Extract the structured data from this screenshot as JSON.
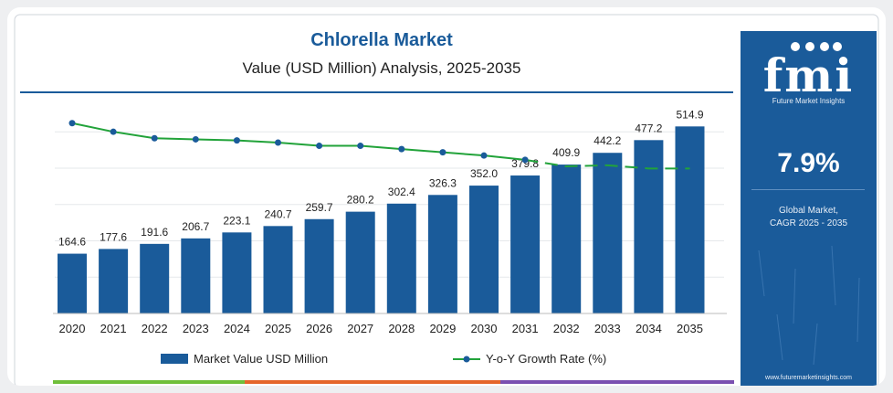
{
  "panel": {
    "logo_text": "fmi",
    "logo_tagline": "Future Market Insights",
    "cagr_value": "7.9%",
    "cagr_label": "Global Market,\nCAGR 2025 - 2035",
    "website": "www.futuremarketinsights.com"
  },
  "colors": {
    "bar": "#1a5b9a",
    "line": "#22a33a",
    "line_marker": "#1a5b9a",
    "title": "#1a5b9a",
    "rule": "#1a5b9a",
    "bottom_strip": [
      "#6fbf3a",
      "#e5652a",
      "#7a4fb0"
    ]
  },
  "chart_data": {
    "type": "bar",
    "title": "Chlorella Market",
    "subtitle": "Value (USD Million) Analysis, 2025-2035",
    "categories": [
      "2020",
      "2021",
      "2022",
      "2023",
      "2024",
      "2025",
      "2026",
      "2027",
      "2028",
      "2029",
      "2030",
      "2031",
      "2032",
      "2033",
      "2034",
      "2035"
    ],
    "series": [
      {
        "name": "Market Value USD Million",
        "type": "bar",
        "values": [
          164.6,
          177.6,
          191.6,
          206.7,
          223.1,
          240.7,
          259.7,
          280.2,
          302.4,
          326.3,
          352.0,
          379.8,
          409.9,
          442.2,
          477.2,
          514.9
        ],
        "labels": [
          "164.6",
          "177.6",
          "191.6",
          "206.7",
          "223.1",
          "240.7",
          "259.7",
          "280.2",
          "302.4",
          "326.3",
          "352.0",
          "379.8",
          "409.9",
          "442.2",
          "477.2",
          "514.9"
        ]
      },
      {
        "name": "Y-o-Y Growth Rate (%)",
        "type": "line",
        "values": [
          8.6,
          8.2,
          7.9,
          7.85,
          7.8,
          7.7,
          7.55,
          7.55,
          7.4,
          7.25,
          7.1,
          6.9,
          6.6,
          6.65,
          6.5,
          6.5
        ]
      }
    ],
    "ylim_bar": [
      0,
      560
    ],
    "ylim_line": [
      0,
      11
    ],
    "grid": "horizontal",
    "legend": "bottom-center"
  }
}
